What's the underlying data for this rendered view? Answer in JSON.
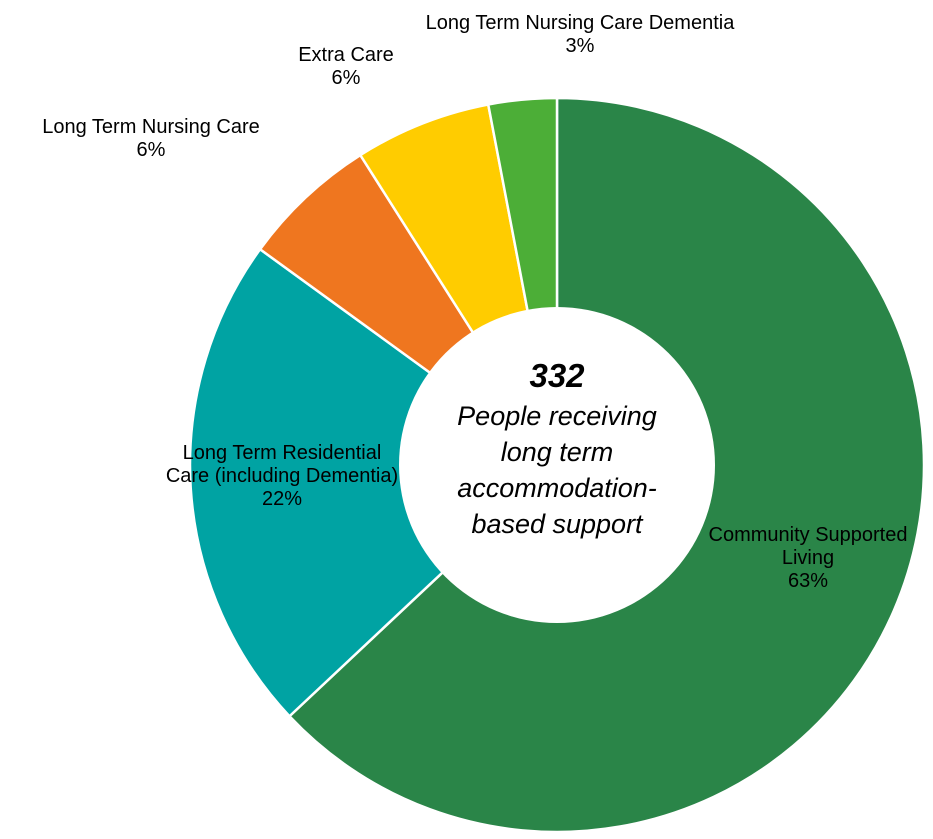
{
  "chart_data": {
    "type": "pie",
    "donut": true,
    "start": "12 o'clock",
    "direction": "clockwise",
    "categories": [
      "Community Supported Living",
      "Long Term Residential Care (including Dementia)",
      "Long Term Nursing Care",
      "Extra Care",
      "Long Term Nursing Care Dementia"
    ],
    "values": [
      63,
      22,
      6,
      6,
      3
    ],
    "value_labels": [
      "63%",
      "22%",
      "6%",
      "6%",
      "3%"
    ],
    "colors": [
      "#2a8548",
      "#00a3a3",
      "#ef761f",
      "#ffcc00",
      "#4cae37"
    ],
    "slice_labels": [
      {
        "lines": [
          "Community Supported",
          "Living",
          "63%"
        ]
      },
      {
        "lines": [
          "Long Term Residential",
          "Care (including Dementia)",
          "22%"
        ]
      },
      {
        "lines": [
          "Long Term Nursing Care",
          "6%"
        ]
      },
      {
        "lines": [
          "Extra Care",
          "6%"
        ]
      },
      {
        "lines": [
          "Long Term Nursing Care Dementia",
          "3%"
        ]
      }
    ],
    "center_count": "332",
    "center_text": [
      "People receiving",
      "long term",
      "accommodation-",
      "based support"
    ]
  }
}
